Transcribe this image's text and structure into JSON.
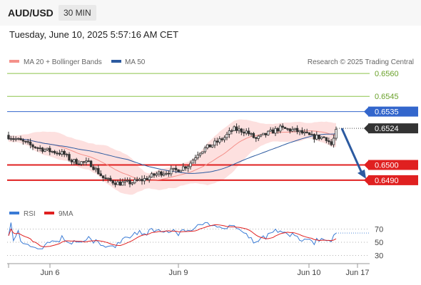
{
  "header": {
    "pair": "AUD/USD",
    "timeframe": "30 MIN",
    "datetime": "Tuesday, June 10, 2025 5:57:16 AM CET"
  },
  "legend": {
    "ma20": "MA 20 + Bollinger Bands",
    "ma50": "MA 50",
    "credit": "Research © 2025 Trading Central",
    "rsi": "RSI",
    "rsi_ma": "9MA"
  },
  "colors": {
    "ma20": "#f4908a",
    "bands_fill": "#fde0df",
    "ma50": "#2c5aa0",
    "target_line": "#8bc34a",
    "pivot_line": "#3366cc",
    "support_line": "#e02020",
    "price_tag": "#333333",
    "candle": "#333333"
  },
  "chart_data": {
    "type": "candlestick",
    "instrument": "AUD/USD",
    "price_levels": [
      {
        "value": 0.656,
        "label": "0.6560",
        "kind": "resistance"
      },
      {
        "value": 0.6545,
        "label": "0.6545",
        "kind": "resistance"
      },
      {
        "value": 0.6535,
        "label": "0.6535",
        "kind": "pivot"
      },
      {
        "value": 0.6524,
        "label": "0.6524",
        "kind": "last"
      },
      {
        "value": 0.65,
        "label": "0.6500",
        "kind": "support"
      },
      {
        "value": 0.649,
        "label": "0.6490",
        "kind": "support"
      }
    ],
    "x_tick_labels": [
      "Jun 6",
      "Jun 9",
      "Jun 10",
      "Jun 17"
    ],
    "rsi_levels": [
      70,
      50,
      30
    ],
    "forecast": {
      "from": 0.6524,
      "to": 0.649,
      "direction": "down"
    }
  }
}
